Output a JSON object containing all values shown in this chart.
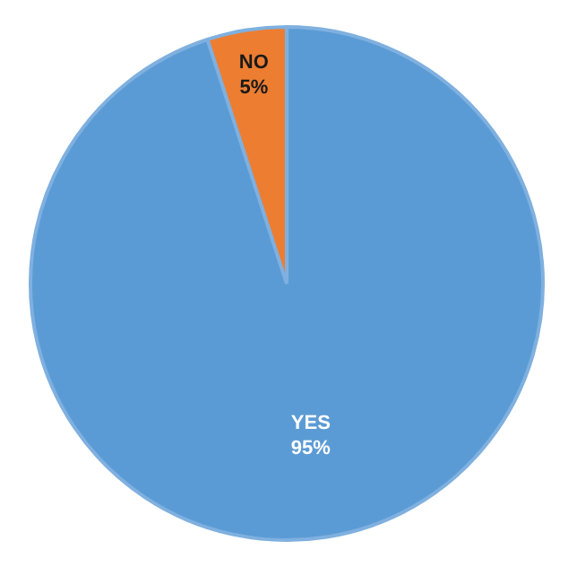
{
  "chart_data": {
    "type": "pie",
    "categories": [
      "YES",
      "NO"
    ],
    "values": [
      95,
      5
    ],
    "colors": [
      "#5b9bd5",
      "#ed7d31"
    ],
    "value_labels": [
      "95%",
      "5%"
    ],
    "legend": false
  }
}
